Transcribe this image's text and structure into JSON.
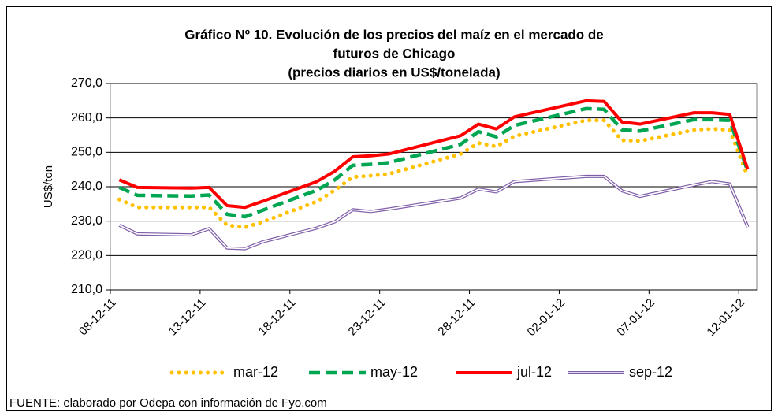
{
  "chart_data": {
    "type": "line",
    "title": [
      "Gráfico Nº 10. Evolución de los precios del maíz en el mercado de",
      "futuros de Chicago"
    ],
    "subtitle": "(precios diarios en US$/tonelada)",
    "y_label": "US$/ton",
    "source": "FUENTE: elaborado por Odepa con información de Fyo.com",
    "x": [
      "2011-12-08",
      "2011-12-09",
      "2011-12-12",
      "2011-12-13",
      "2011-12-14",
      "2011-12-15",
      "2011-12-16",
      "2011-12-19",
      "2011-12-20",
      "2011-12-21",
      "2011-12-22",
      "2011-12-23",
      "2011-12-27",
      "2011-12-28",
      "2011-12-29",
      "2011-12-30",
      "2012-01-03",
      "2012-01-04",
      "2012-01-05",
      "2012-01-06",
      "2012-01-09",
      "2012-01-10",
      "2012-01-11",
      "2012-01-12"
    ],
    "xlim": [
      "2011-12-08",
      "2012-01-13"
    ],
    "xticks": [
      {
        "value": "2011-12-08",
        "label": "08-12-11"
      },
      {
        "value": "2011-12-13",
        "label": "13-12-11"
      },
      {
        "value": "2011-12-18",
        "label": "18-12-11"
      },
      {
        "value": "2011-12-23",
        "label": "23-12-11"
      },
      {
        "value": "2011-12-28",
        "label": "28-12-11"
      },
      {
        "value": "2012-01-02",
        "label": "02-01-12"
      },
      {
        "value": "2012-01-07",
        "label": "07-01-12"
      },
      {
        "value": "2012-01-12",
        "label": "12-01-12"
      }
    ],
    "ylim": [
      210,
      270
    ],
    "yticks": [
      {
        "value": 210,
        "label": "210,0"
      },
      {
        "value": 220,
        "label": "220,0"
      },
      {
        "value": 230,
        "label": "230,0"
      },
      {
        "value": 240,
        "label": "240,0"
      },
      {
        "value": 250,
        "label": "250,0"
      },
      {
        "value": 260,
        "label": "260,0"
      },
      {
        "value": 270,
        "label": "270,0"
      }
    ],
    "grid": true,
    "legend": "bottom",
    "series": [
      {
        "name": "mar-12",
        "color": "#ffc000",
        "style": "dotted",
        "values": [
          236.3,
          234,
          234,
          234,
          228.8,
          228.2,
          229.8,
          235.7,
          239,
          242.8,
          243.2,
          243.7,
          249.5,
          252.7,
          251.7,
          254.7,
          259.3,
          259.3,
          253.5,
          253.3,
          256.5,
          256.8,
          256.5,
          243
        ]
      },
      {
        "name": "may-12",
        "color": "#00a651",
        "style": "dashed",
        "values": [
          239.8,
          237.5,
          237.3,
          237.6,
          232,
          231.3,
          233.2,
          239,
          242,
          246.2,
          246.5,
          247,
          252.3,
          256,
          254.5,
          257.8,
          262.7,
          262.5,
          256.5,
          256.2,
          259.5,
          259.5,
          259.3,
          244.5
        ]
      },
      {
        "name": "jul-12",
        "color": "#ff0000",
        "style": "solid",
        "values": [
          242,
          239.8,
          239.6,
          239.8,
          234.5,
          234,
          235.8,
          241.5,
          244.5,
          248.7,
          249,
          249.5,
          254.8,
          258.2,
          256.8,
          260.3,
          265,
          264.8,
          258.8,
          258.2,
          261.5,
          261.5,
          261,
          245
        ]
      },
      {
        "name": "sep-12",
        "color": "#7f5fa8",
        "style": "double",
        "values": [
          228.8,
          226.3,
          226,
          227.8,
          222.2,
          222,
          224,
          228,
          229.8,
          233.3,
          232.8,
          233.5,
          236.7,
          239.3,
          238.5,
          241.5,
          243,
          243,
          238.8,
          237.2,
          240.5,
          241.5,
          240.8,
          228.3
        ]
      }
    ]
  }
}
